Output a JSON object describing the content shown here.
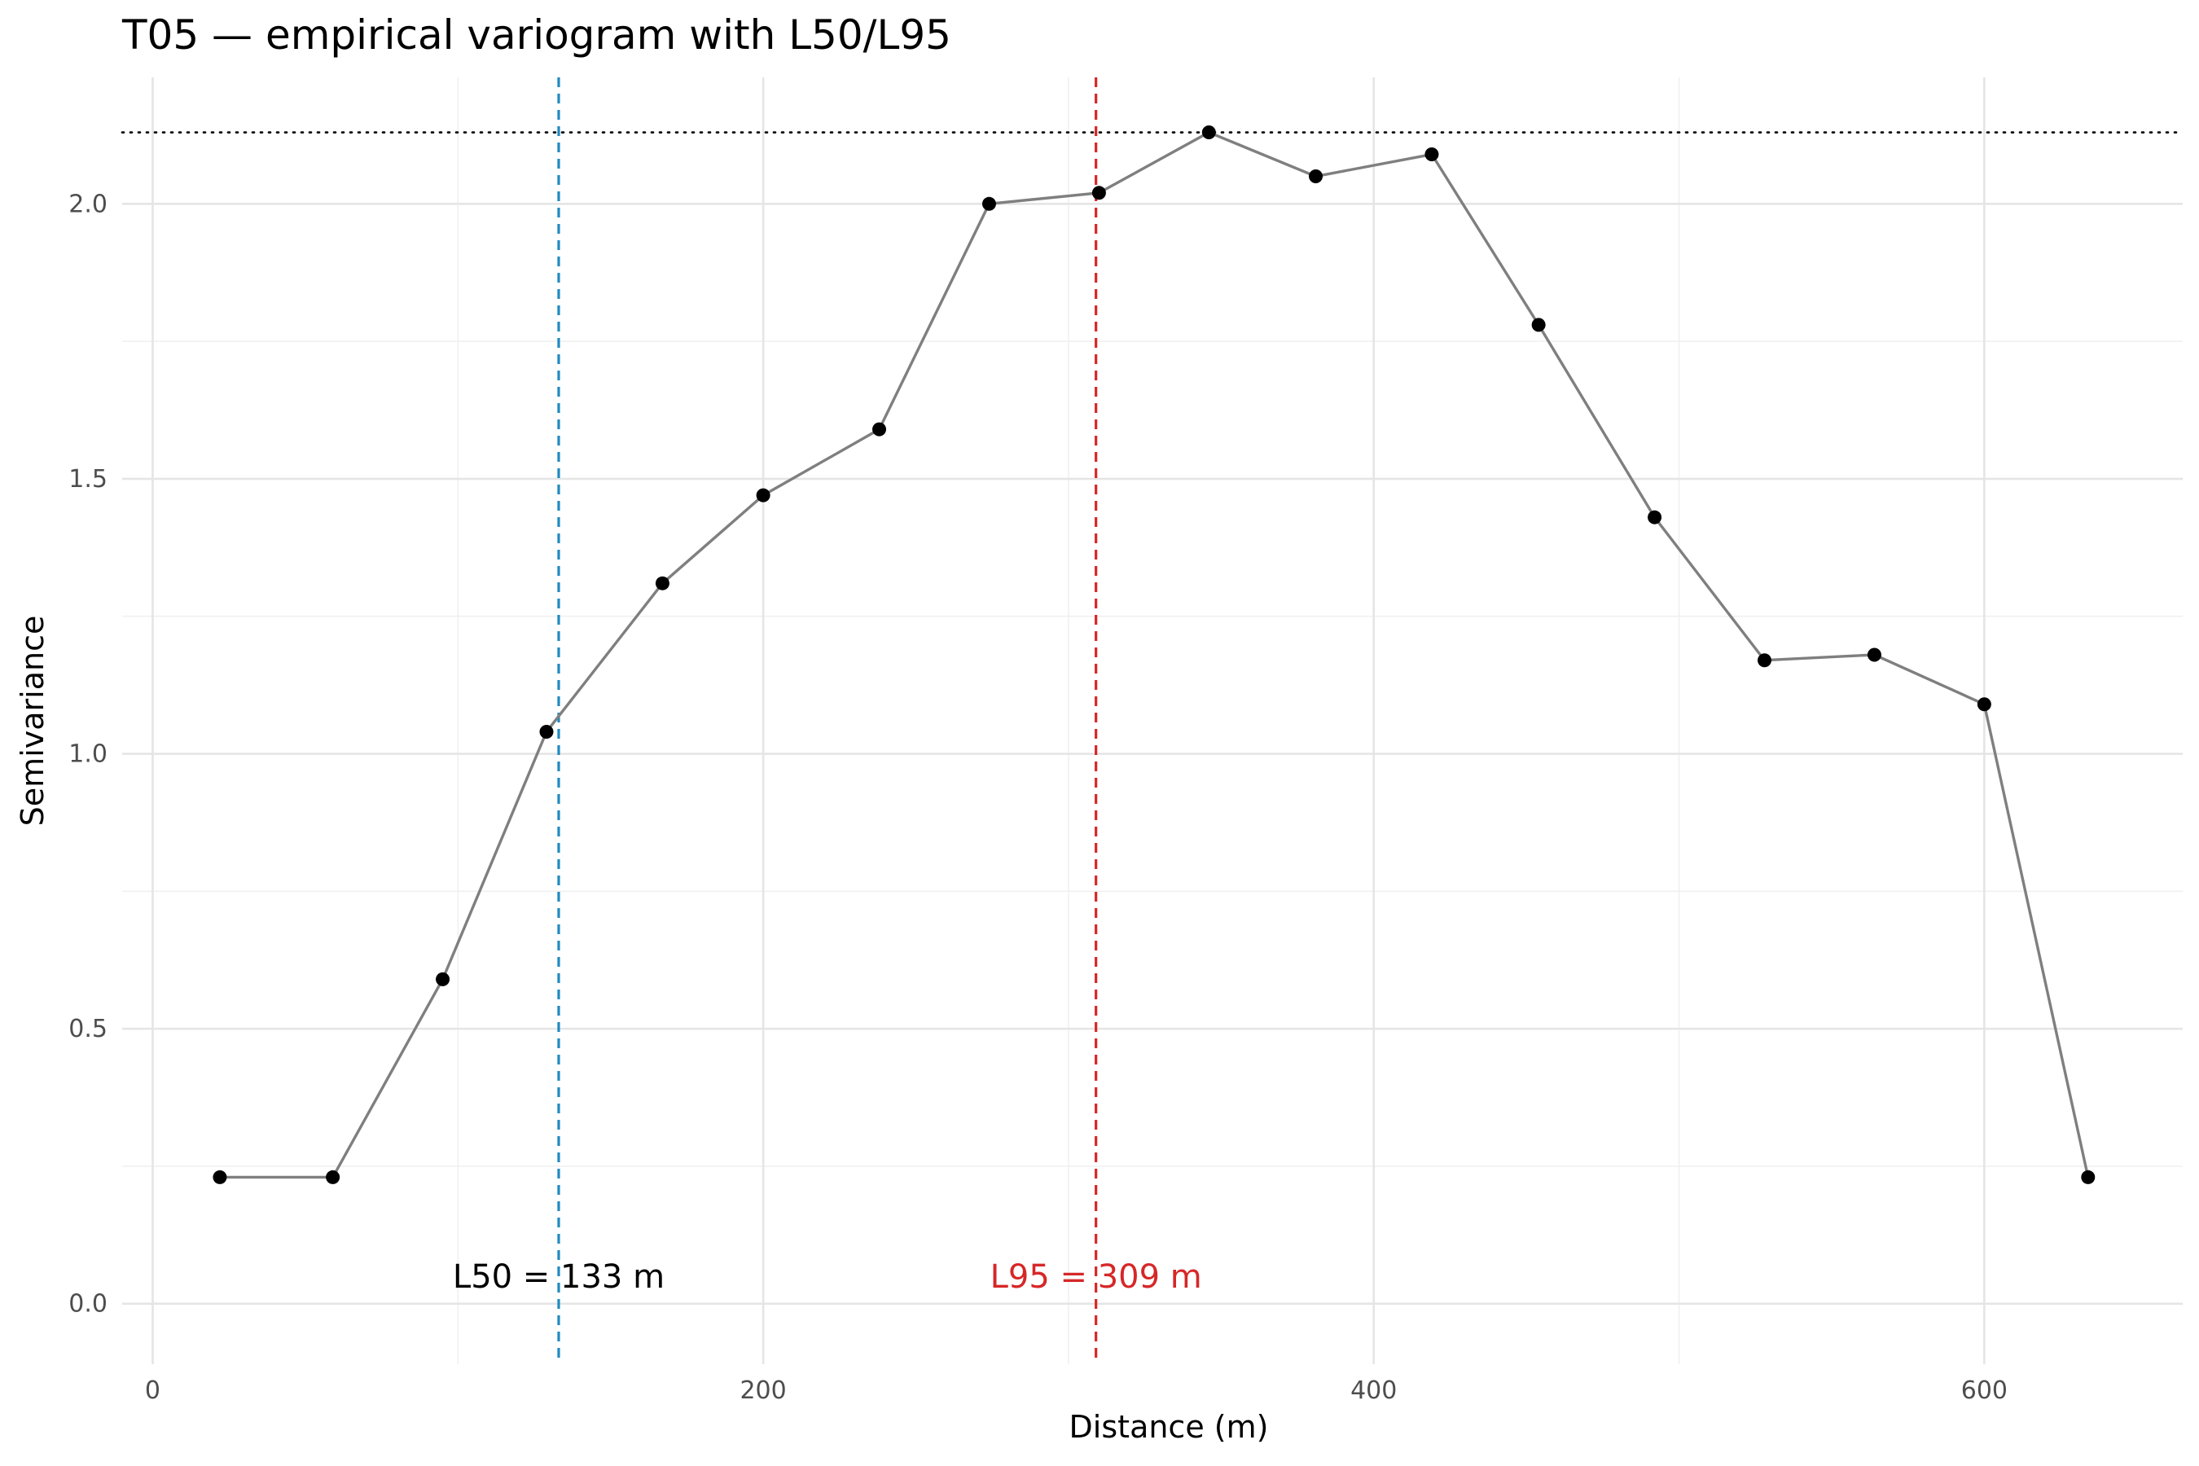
{
  "chart_data": {
    "type": "line",
    "title": "T05 — empirical variogram with L50/L95",
    "xlabel": "Distance (m)",
    "ylabel": "Semivariance",
    "xlim": [
      -10,
      665
    ],
    "ylim": [
      -0.11,
      2.23
    ],
    "x_ticks": [
      0,
      200,
      400,
      600
    ],
    "x_tick_labels": [
      "0",
      "200",
      "400",
      "600"
    ],
    "y_ticks": [
      0.0,
      0.5,
      1.0,
      1.5,
      2.0
    ],
    "y_tick_labels": [
      "0.0",
      "0.5",
      "1.0",
      "1.5",
      "2.0"
    ],
    "grid": true,
    "series": [
      {
        "x": [
          22,
          59,
          95,
          129,
          167,
          200,
          238,
          274,
          310,
          346,
          381,
          419,
          454,
          492,
          528,
          564,
          600,
          634
        ],
        "y": [
          0.23,
          0.23,
          0.59,
          1.04,
          1.31,
          1.47,
          1.59,
          2.0,
          2.02,
          2.13,
          2.05,
          2.09,
          1.78,
          1.43,
          1.17,
          1.18,
          1.09,
          0.23
        ],
        "line_color": "#7f7f7f",
        "point_color": "#000000"
      }
    ],
    "sill": {
      "y": 2.13,
      "color": "#000000",
      "style": "dotted"
    },
    "reference_lines": [
      {
        "x": 133,
        "color": "#1f8ac0",
        "style": "dashed",
        "label": "L50 = 133 m",
        "label_color": "#000000"
      },
      {
        "x": 309,
        "color": "#d62728",
        "style": "dashed",
        "label": "L95 = 309 m",
        "label_color": "#d62728"
      }
    ],
    "annotation_y": 0.05
  }
}
